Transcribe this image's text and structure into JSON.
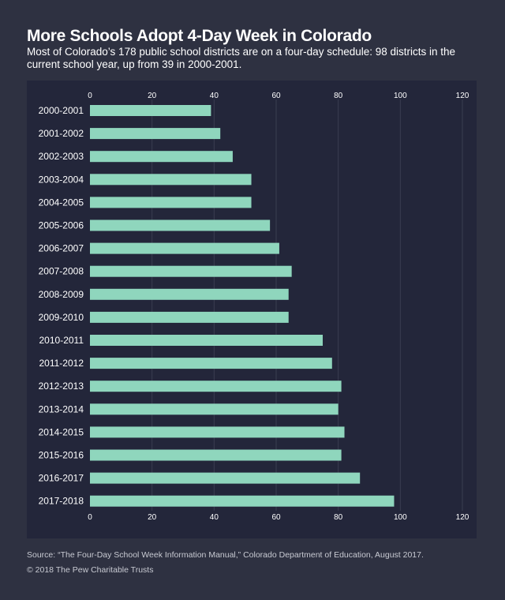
{
  "title": "More Schools Adopt 4-Day Week in Colorado",
  "subtitle": "Most of Colorado’s 178 public school districts are on a four-day schedule: 98 districts in the current school year, up from 39 in 2000-2001.",
  "source": "Source: “The Four-Day School Week Information Manual,” Colorado Department of Education, August 2017.",
  "copyright": "© 2018 The Pew Charitable Trusts",
  "colors": {
    "background": "#2e3141",
    "panel": "#23263a",
    "bar": "#8fd6bd",
    "grid": "#3a3d50"
  },
  "chart_data": {
    "type": "bar",
    "orientation": "horizontal",
    "categories": [
      "2000-2001",
      "2001-2002",
      "2002-2003",
      "2003-2004",
      "2004-2005",
      "2005-2006",
      "2006-2007",
      "2007-2008",
      "2008-2009",
      "2009-2010",
      "2010-2011",
      "2011-2012",
      "2012-2013",
      "2013-2014",
      "2014-2015",
      "2015-2016",
      "2016-2017",
      "2017-2018"
    ],
    "values": [
      39,
      42,
      46,
      52,
      52,
      58,
      61,
      65,
      64,
      64,
      75,
      78,
      81,
      80,
      82,
      81,
      87,
      98
    ],
    "xlim": [
      0,
      120
    ],
    "xticks": [
      0,
      20,
      40,
      60,
      80,
      100,
      120
    ],
    "title": "More Schools Adopt 4-Day Week in Colorado",
    "xlabel": "",
    "ylabel": "",
    "grid": true,
    "tick_labels_top": true,
    "tick_labels_bottom": true
  }
}
